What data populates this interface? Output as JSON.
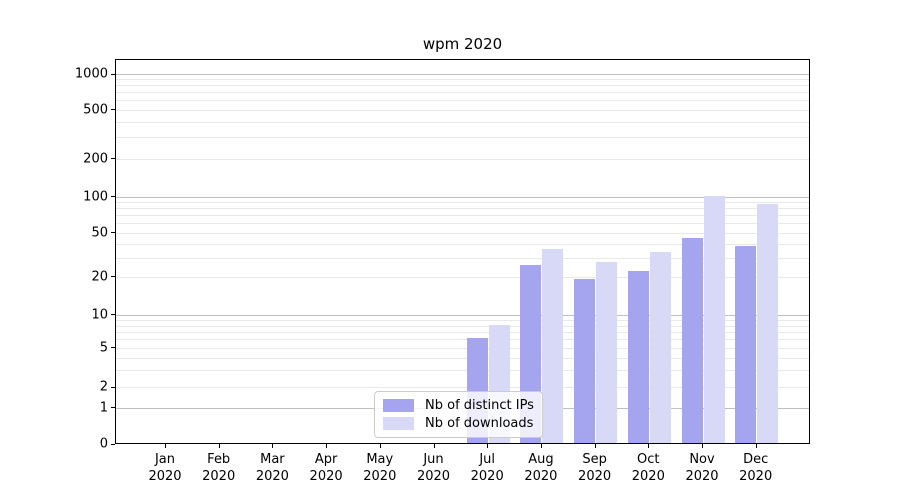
{
  "title": "wpm 2020",
  "legend": {
    "items": [
      {
        "label": "Nb of distinct IPs",
        "color": "#a5a5ef"
      },
      {
        "label": "Nb of downloads",
        "color": "#d8d8f7"
      }
    ]
  },
  "colors": {
    "series1": "#a5a5ef",
    "series2": "#d8d8f7",
    "grid_major": "#c0c0c0",
    "grid_minor": "#e9e9e9",
    "axis": "#000000",
    "background": "#ffffff",
    "legend_border": "#cccccc"
  },
  "chart_data": {
    "type": "bar",
    "title": "wpm 2020",
    "categories": [
      "Jan 2020",
      "Feb 2020",
      "Mar 2020",
      "Apr 2020",
      "May 2020",
      "Jun 2020",
      "Jul 2020",
      "Aug 2020",
      "Sep 2020",
      "Oct 2020",
      "Nov 2020",
      "Dec 2020"
    ],
    "series": [
      {
        "name": "Nb of distinct IPs",
        "color": "#a5a5ef",
        "values": [
          0,
          0,
          0,
          0,
          0,
          0,
          6,
          25,
          19,
          22,
          44,
          37
        ]
      },
      {
        "name": "Nb of downloads",
        "color": "#d8d8f7",
        "values": [
          0,
          0,
          0,
          0,
          0,
          0,
          8,
          35,
          27,
          33,
          100,
          86
        ]
      }
    ],
    "xlabel": "",
    "ylabel": "",
    "yscale": "symlog",
    "y_ticks": [
      0,
      1,
      2,
      5,
      10,
      20,
      50,
      100,
      200,
      500,
      1000
    ],
    "y_minor_gridlines": [
      2,
      3,
      4,
      5,
      6,
      7,
      8,
      9,
      20,
      30,
      40,
      50,
      60,
      70,
      80,
      90,
      200,
      300,
      400,
      500,
      600,
      700,
      800,
      900
    ],
    "y_major_gridlines": [
      1,
      10,
      100,
      1000
    ],
    "ylim": [
      0,
      1340
    ],
    "grid": "horizontal only, major and minor",
    "legend_position": "lower center inside axes"
  }
}
